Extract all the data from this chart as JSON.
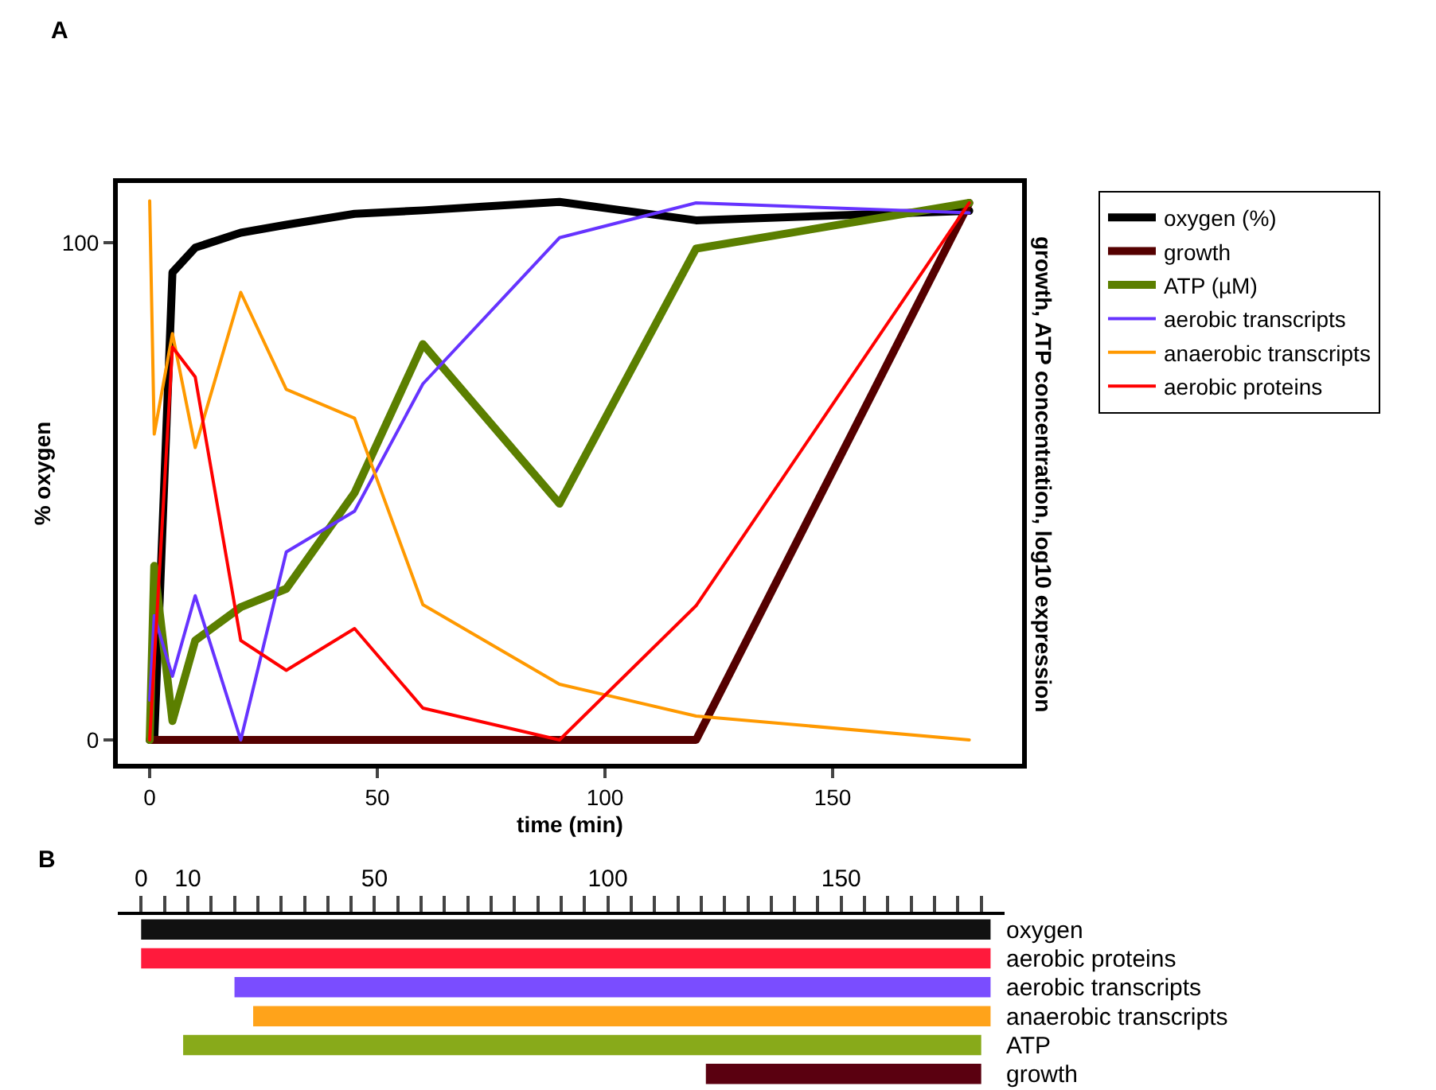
{
  "chart_data": [
    {
      "type": "line",
      "xlabel": "time (min)",
      "ylabel": "% oxygen",
      "y2label": "growth, ATP concentration, log10 expression",
      "x": [
        0,
        1,
        5,
        10,
        20,
        30,
        45,
        60,
        90,
        120,
        180
      ],
      "series": [
        {
          "name": "oxygen (%)",
          "color": "#000000",
          "values": [
            0,
            0,
            94,
            99,
            102,
            103.6,
            105.8,
            106.5,
            108.2,
            104.5,
            106.4
          ]
        },
        {
          "name": "growth",
          "color": "#550000",
          "values": [
            0,
            0,
            0,
            0,
            0,
            0,
            0,
            0,
            0,
            0,
            108
          ]
        },
        {
          "name": "ATP (µM)",
          "color": "#5b7f00",
          "values": [
            0,
            35,
            3.8,
            20,
            26.7,
            30.4,
            49.7,
            79.6,
            47.5,
            98.8,
            108
          ]
        },
        {
          "name": "aerobic transcripts",
          "color": "#6633ff",
          "values": [
            8,
            25,
            12.8,
            29,
            0,
            37.8,
            46,
            71.6,
            101,
            108,
            106
          ]
        },
        {
          "name": "anaerobic transcripts",
          "color": "#ff9900",
          "values": [
            108.4,
            61.5,
            81.7,
            58.8,
            90,
            70.5,
            64.7,
            27.2,
            11.2,
            4.8,
            0
          ]
        },
        {
          "name": "aerobic proteins",
          "color": "#ff0000",
          "x": [
            0,
            5,
            10,
            20,
            30,
            45,
            60,
            90,
            120,
            180
          ],
          "values": [
            0,
            79,
            73,
            20,
            14,
            22.4,
            6.4,
            0,
            27,
            108
          ]
        }
      ],
      "xlim": [
        -7,
        191.6
      ],
      "ylim": [
        -4.8,
        112
      ],
      "xticks": [
        0,
        50,
        100,
        150
      ],
      "yticks": [
        0,
        100
      ],
      "legend": "right",
      "grid": false,
      "marker": "none",
      "line_style": "solid",
      "annotations": [
        "A"
      ]
    },
    {
      "type": "bar",
      "orientation": "horizontal",
      "categories": [
        "oxygen",
        "aerobic proteins",
        "aerobic transcripts",
        "anaerobic transcripts",
        "ATP",
        "growth"
      ],
      "base": [
        0,
        0,
        20,
        24,
        9,
        121
      ],
      "values": [
        182,
        182,
        162,
        158,
        171,
        59
      ],
      "colors": [
        "#111111",
        "#ff1a3c",
        "#7a4dff",
        "#ffa31a",
        "#88aa1a",
        "#5a0010"
      ],
      "xlim": [
        -5,
        185
      ],
      "xticks": [
        0,
        {
          "value": 5,
          "label": null
        },
        10,
        {
          "value": 15,
          "label": null
        },
        {
          "value": 20,
          "label": null
        },
        {
          "value": 25,
          "label": null
        },
        {
          "value": 30,
          "label": null
        },
        {
          "value": 35,
          "label": null
        },
        {
          "value": 40,
          "label": null
        },
        {
          "value": 45,
          "label": null
        },
        50,
        {
          "value": 55,
          "label": null
        },
        {
          "value": 60,
          "label": null
        },
        {
          "value": 65,
          "label": null
        },
        {
          "value": 70,
          "label": null
        },
        {
          "value": 75,
          "label": null
        },
        {
          "value": 80,
          "label": null
        },
        {
          "value": 85,
          "label": null
        },
        {
          "value": 90,
          "label": null
        },
        {
          "value": 95,
          "label": null
        },
        100,
        {
          "value": 105,
          "label": null
        },
        {
          "value": 110,
          "label": null
        },
        {
          "value": 115,
          "label": null
        },
        {
          "value": 120,
          "label": null
        },
        {
          "value": 125,
          "label": null
        },
        {
          "value": 130,
          "label": null
        },
        {
          "value": 135,
          "label": null
        },
        {
          "value": 140,
          "label": null
        },
        {
          "value": 145,
          "label": null
        },
        150,
        {
          "value": 155,
          "label": null
        },
        {
          "value": 160,
          "label": null
        },
        {
          "value": 165,
          "label": null
        },
        {
          "value": 170,
          "label": null
        },
        {
          "value": 175,
          "label": null
        },
        {
          "value": 180,
          "label": null
        }
      ],
      "grid": false,
      "annotations": [
        "B"
      ]
    }
  ]
}
